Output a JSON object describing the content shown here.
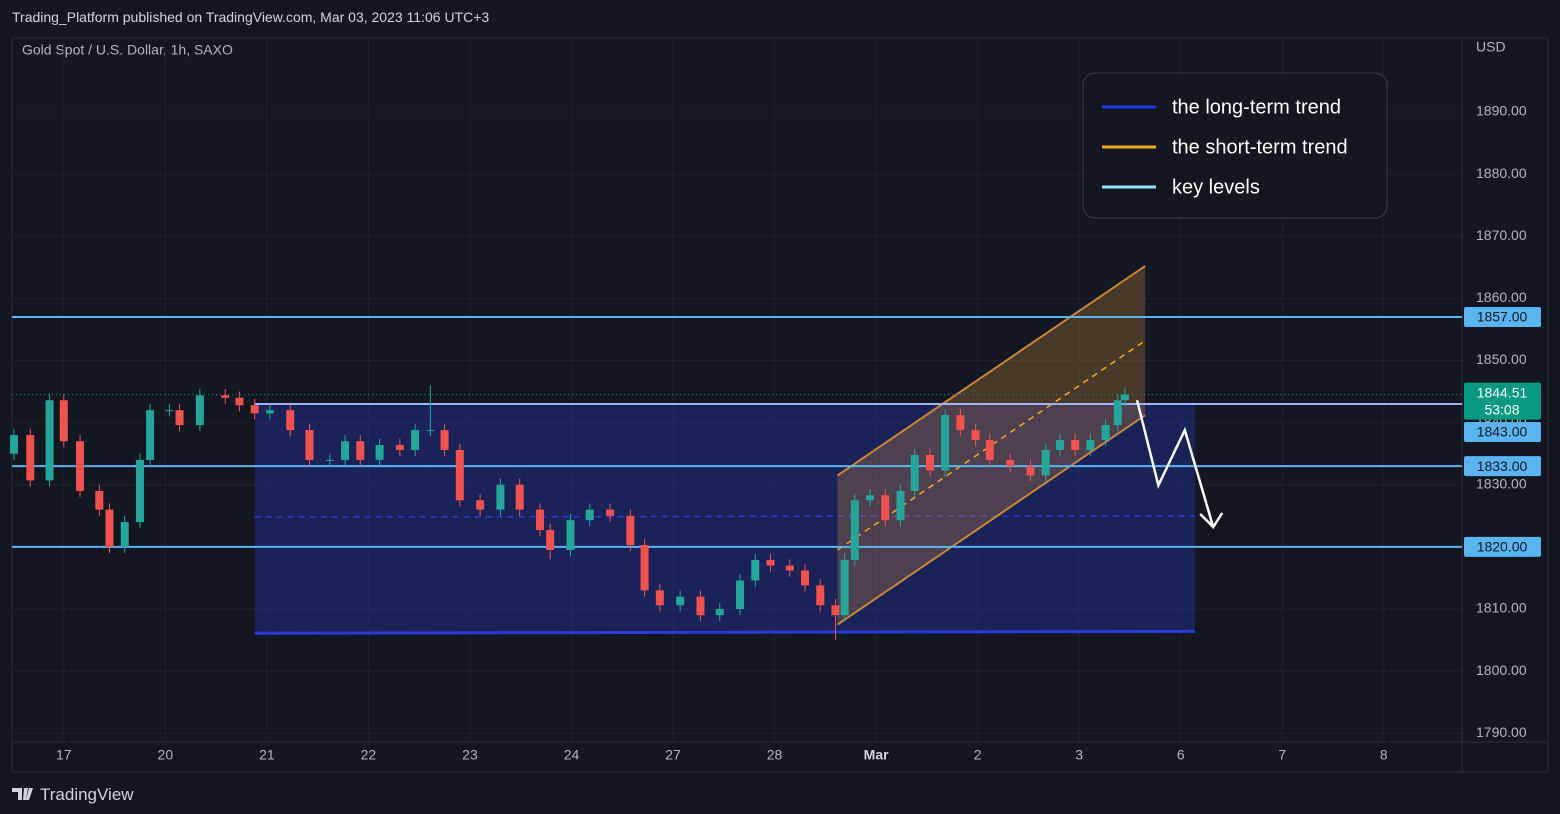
{
  "header": {
    "publisher": "Trading_Platform published on TradingView.com, Mar 03, 2023 11:06 UTC+3",
    "brand": "TradingView"
  },
  "chart_data": {
    "type": "candlestick",
    "title": "Gold Spot / U.S. Dollar, 1h, SAXO",
    "currency": "USD",
    "x": [
      -0.49,
      -0.33,
      -0.14,
      0,
      0.16,
      0.35,
      0.45,
      0.6,
      0.75,
      0.85,
      1.04,
      1.14,
      1.34,
      1.59,
      1.73,
      1.88,
      2.03,
      2.23,
      2.42,
      2.62,
      2.77,
      2.92,
      3.11,
      3.31,
      3.46,
      3.61,
      3.75,
      3.9,
      4.1,
      4.3,
      4.49,
      4.69,
      4.79,
      4.99,
      5.18,
      5.38,
      5.58,
      5.72,
      5.87,
      6.07,
      6.27,
      6.46,
      6.66,
      6.81,
      6.96,
      7.15,
      7.3,
      7.45,
      7.6,
      7.69,
      7.79,
      7.94,
      8.09,
      8.24,
      8.38,
      8.53,
      8.68,
      8.83,
      8.98,
      9.12,
      9.32,
      9.52,
      9.67,
      9.81,
      9.96,
      10.11,
      10.26,
      10.38,
      10.45
    ],
    "open": [
      1835,
      1838,
      1830.7,
      1843.6,
      1837,
      1829,
      1826,
      1820,
      1824,
      1834,
      1842,
      1842,
      1839.6,
      1844.4,
      1844,
      1842.8,
      1841.5,
      1842,
      1838.8,
      1834,
      1834,
      1837,
      1834,
      1836.4,
      1835.6,
      1838.8,
      1838.8,
      1835.6,
      1827.5,
      1826,
      1830,
      1826,
      1822.7,
      1819.5,
      1824.3,
      1826,
      1825,
      1820.3,
      1813,
      1810.6,
      1812,
      1809,
      1810,
      1814.6,
      1817.9,
      1817,
      1816.2,
      1813.8,
      1810.6,
      1809,
      1817.9,
      1827.5,
      1828.3,
      1824.3,
      1829,
      1834.8,
      1832.3,
      1841.2,
      1838.8,
      1837.2,
      1834,
      1833,
      1831.5,
      1835.6,
      1837.2,
      1835.6,
      1837.2,
      1839.6,
      1843.6
    ],
    "high": [
      1839,
      1839,
      1844.6,
      1844.6,
      1838,
      1830,
      1827,
      1825,
      1835,
      1843,
      1843,
      1843,
      1845.4,
      1845.4,
      1845,
      1843.8,
      1843,
      1843,
      1839.8,
      1835,
      1838,
      1838,
      1837.4,
      1837.4,
      1839.8,
      1846,
      1839.8,
      1836.6,
      1828.5,
      1831,
      1831,
      1827,
      1823.7,
      1825.3,
      1827,
      1827,
      1826,
      1821.3,
      1814,
      1813,
      1813,
      1811,
      1815.6,
      1818.9,
      1818.9,
      1818,
      1817.2,
      1814.8,
      1811.6,
      1818.9,
      1828.5,
      1829.3,
      1829.3,
      1830,
      1835.8,
      1835.8,
      1842.2,
      1842.2,
      1839.8,
      1838.2,
      1835,
      1834,
      1836.6,
      1838.2,
      1838.2,
      1838.2,
      1840.6,
      1844.6,
      1845.5
    ],
    "low": [
      1834,
      1829.7,
      1829.7,
      1836,
      1828,
      1825,
      1819,
      1819,
      1823,
      1833,
      1841,
      1838.6,
      1838.6,
      1843,
      1841.8,
      1840.5,
      1840.5,
      1837.8,
      1833,
      1833,
      1833,
      1833,
      1833,
      1834.6,
      1834.6,
      1837.8,
      1834.6,
      1826.5,
      1825,
      1825,
      1825,
      1821.7,
      1818,
      1818.5,
      1823.3,
      1824,
      1819.3,
      1812,
      1809.6,
      1809.6,
      1808,
      1808,
      1809,
      1813.6,
      1816,
      1815.2,
      1812.8,
      1809.6,
      1805,
      1808,
      1816.9,
      1826.5,
      1823.3,
      1823.3,
      1828,
      1831.3,
      1831.3,
      1837.8,
      1836.2,
      1833,
      1832,
      1830.5,
      1830.5,
      1834.6,
      1834.6,
      1834.6,
      1836.2,
      1838.6,
      1842.6
    ],
    "close": [
      1838,
      1830.7,
      1843.6,
      1837,
      1829,
      1826,
      1820,
      1824,
      1834,
      1842,
      1842,
      1839.6,
      1844.4,
      1844,
      1842.8,
      1841.5,
      1842,
      1838.8,
      1834,
      1834,
      1837,
      1834,
      1836.4,
      1835.6,
      1838.8,
      1838.8,
      1835.6,
      1827.5,
      1826,
      1830,
      1826,
      1822.7,
      1819.5,
      1824.3,
      1826,
      1825,
      1820.3,
      1813,
      1810.6,
      1812,
      1809,
      1810,
      1814.6,
      1817.9,
      1817,
      1816.2,
      1813.8,
      1810.6,
      1809,
      1817.9,
      1827.5,
      1828.3,
      1824.3,
      1829,
      1834.8,
      1832.3,
      1841.2,
      1838.8,
      1837.2,
      1834,
      1833,
      1831.5,
      1835.6,
      1837.2,
      1835.6,
      1837.2,
      1839.6,
      1843.6,
      1844.51
    ],
    "up_color": "#26a69a",
    "down_color": "#ef5350",
    "xlim": [
      -0.51,
      13.77
    ],
    "xticks": [
      {
        "value": 0,
        "label": "17"
      },
      {
        "value": 1,
        "label": "20"
      },
      {
        "value": 2,
        "label": "21"
      },
      {
        "value": 3,
        "label": "22"
      },
      {
        "value": 4,
        "label": "23"
      },
      {
        "value": 5,
        "label": "24"
      },
      {
        "value": 6,
        "label": "27"
      },
      {
        "value": 7,
        "label": "28"
      },
      {
        "value": 8,
        "label": "Mar"
      },
      {
        "value": 9,
        "label": "2"
      },
      {
        "value": 10,
        "label": "3"
      },
      {
        "value": 11,
        "label": "6"
      },
      {
        "value": 12,
        "label": "7"
      },
      {
        "value": 13,
        "label": "8"
      }
    ],
    "ylim": [
      1788.6,
      1901.9
    ],
    "yticks": [
      {
        "value": 1790,
        "label": "1790.00"
      },
      {
        "value": 1800,
        "label": "1800.00"
      },
      {
        "value": 1810,
        "label": "1810.00"
      },
      {
        "value": 1820,
        "label": "1820.00"
      },
      {
        "value": 1830,
        "label": "1830.00"
      },
      {
        "value": 1840,
        "label": "1840.00"
      },
      {
        "value": 1850,
        "label": "1850.00"
      },
      {
        "value": 1860,
        "label": "1860.00"
      },
      {
        "value": 1870,
        "label": "1870.00"
      },
      {
        "value": 1880,
        "label": "1880.00"
      },
      {
        "value": 1890,
        "label": "1890.00"
      }
    ],
    "grid": true,
    "last_price": {
      "value": 1844.51,
      "label": "1844.51",
      "countdown": "53:08",
      "color": "#089981"
    },
    "key_levels": {
      "color": "#5ab4f0",
      "levels": [
        {
          "value": 1857,
          "label": "1857.00"
        },
        {
          "value": 1833,
          "label": "1833.00"
        },
        {
          "value": 1820,
          "label": "1820.00"
        }
      ]
    },
    "range_box": {
      "color": "#2a3ad6",
      "x": [
        1.88,
        11.14
      ],
      "top": {
        "value": 1843,
        "label": "1843.00"
      },
      "bottom": [
        1806.1,
        1806.4
      ],
      "mid": [
        1824.8,
        1825.0
      ]
    },
    "channel": {
      "color": "#c8873a",
      "x": [
        7.62,
        10.65
      ],
      "lower": [
        1807.5,
        1841.2
      ],
      "upper": [
        1831.5,
        1865.2
      ],
      "mid": [
        1819.5,
        1853.2
      ]
    },
    "projection": {
      "color": "#ffffff",
      "x": [
        10.57,
        10.78,
        11.04,
        11.32
      ],
      "y": [
        1843.6,
        1829.9,
        1838.8,
        1823.2
      ]
    },
    "legend": [
      {
        "name": "the long-term trend",
        "color": "#1e3ae8"
      },
      {
        "name": "the short-term trend",
        "color": "#f5a623"
      },
      {
        "name": "key levels",
        "color": "#8fe3ff"
      }
    ]
  }
}
